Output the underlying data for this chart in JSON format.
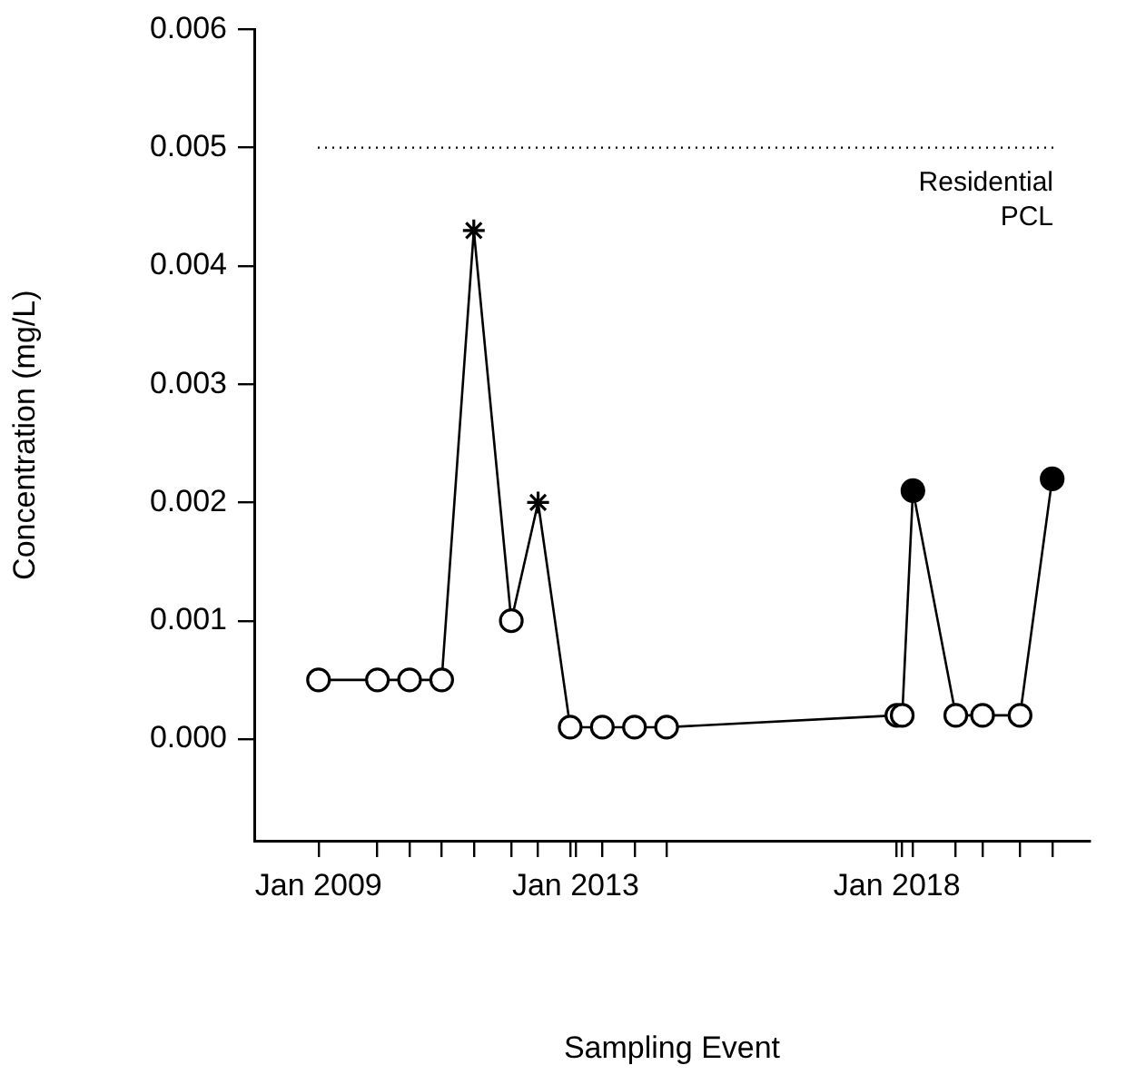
{
  "chart_data": {
    "type": "line",
    "xlabel": "Sampling Event",
    "ylabel": "Concentration (mg/L)",
    "x": [
      "2009-01",
      "2009-12",
      "2010-06",
      "2010-12",
      "2011-06",
      "2012-01",
      "2012-06",
      "2012-12",
      "2013-06",
      "2013-12",
      "2014-06",
      "2018-01",
      "2018-02",
      "2018-04",
      "2018-12",
      "2019-05",
      "2019-12",
      "2020-06"
    ],
    "series": [
      {
        "type": "line",
        "color": "#000000",
        "marker": "none",
        "line_style": "solid",
        "values": [
          0.0005,
          0.0005,
          0.0005,
          0.0005,
          0.0043,
          0.001,
          0.002,
          0.0001,
          0.0001,
          0.0001,
          0.0001,
          0.0002,
          0.0002,
          0.0021,
          0.0002,
          0.0002,
          0.0002,
          0.0022
        ]
      },
      {
        "type": "scatter",
        "color": "#ffffff",
        "marker": "circle",
        "values": [
          0.0005,
          0.0005,
          0.0005,
          0.0005,
          null,
          0.001,
          null,
          0.0001,
          0.0001,
          0.0001,
          0.0001,
          0.0002,
          0.0002,
          null,
          0.0002,
          0.0002,
          0.0002,
          null
        ]
      },
      {
        "type": "scatter",
        "color": "#000000",
        "marker": "cross",
        "values": [
          null,
          null,
          null,
          null,
          0.0043,
          null,
          0.002,
          null,
          null,
          null,
          null,
          null,
          null,
          null,
          null,
          null,
          null,
          null
        ]
      },
      {
        "type": "scatter",
        "color": "#000000",
        "marker": "circle",
        "values": [
          null,
          null,
          null,
          null,
          null,
          null,
          null,
          null,
          null,
          null,
          null,
          null,
          null,
          0.0021,
          null,
          null,
          null,
          0.0022
        ]
      }
    ],
    "xlim": [
      "2008-01",
      "2021-01"
    ],
    "xticks": [
      {
        "value": "2009-01",
        "label": "Jan 2009"
      },
      {
        "value": "2009-12",
        "label": null
      },
      {
        "value": "2010-06",
        "label": null
      },
      {
        "value": "2010-12",
        "label": null
      },
      {
        "value": "2011-06",
        "label": null
      },
      {
        "value": "2012-01",
        "label": null
      },
      {
        "value": "2012-06",
        "label": null
      },
      {
        "value": "2012-12",
        "label": null
      },
      {
        "value": "2013-01",
        "label": "Jan 2013"
      },
      {
        "value": "2013-06",
        "label": null
      },
      {
        "value": "2013-12",
        "label": null
      },
      {
        "value": "2014-06",
        "label": null
      },
      {
        "value": "2018-01",
        "label": "Jan 2018"
      },
      {
        "value": "2018-02",
        "label": null
      },
      {
        "value": "2018-04",
        "label": null
      },
      {
        "value": "2018-12",
        "label": null
      },
      {
        "value": "2019-05",
        "label": null
      },
      {
        "value": "2019-12",
        "label": null
      },
      {
        "value": "2020-06",
        "label": null
      }
    ],
    "ylim": [
      -0.00086,
      0.006
    ],
    "yticks": [
      {
        "value": 0,
        "label": "0.000"
      },
      {
        "value": 0.001,
        "label": "0.001"
      },
      {
        "value": 0.002,
        "label": "0.002"
      },
      {
        "value": 0.003,
        "label": "0.003"
      },
      {
        "value": 0.004,
        "label": "0.004"
      },
      {
        "value": 0.005,
        "label": "0.005"
      },
      {
        "value": 0.006,
        "label": "0.006"
      }
    ],
    "ref_lines": [
      {
        "axis": "y",
        "value": 0.005,
        "label": "Residential PCL",
        "line_style": "dotted",
        "color": "#000000"
      }
    ],
    "grid": false,
    "legend": false
  }
}
